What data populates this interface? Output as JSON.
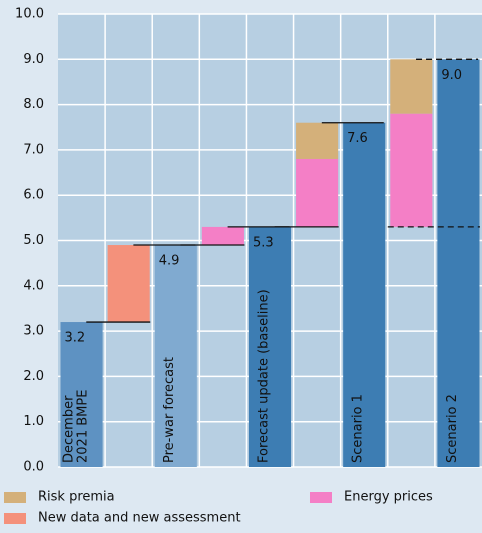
{
  "chart_data": {
    "type": "waterfall",
    "categories": [
      "December 2021 BMPE",
      null,
      "Pre-war forecast",
      null,
      "Forecast update (baseline)",
      null,
      "Scenario 1",
      null,
      "Scenario 2"
    ],
    "values": [
      3.2,
      null,
      4.9,
      null,
      5.3,
      null,
      7.6,
      null,
      9.0
    ],
    "value_labels": [
      "3.2",
      null,
      "4.9",
      null,
      "5.3",
      null,
      "7.6",
      null,
      "9.0"
    ],
    "colors": [
      "#5e92c2",
      null,
      "#80aad0",
      null,
      "#3d7db3",
      null,
      "#3d7db3",
      null,
      "#3d7db3"
    ],
    "series": [
      {
        "name": "Risk premia",
        "color": "#d4b07a",
        "values": [
          null,
          null,
          null,
          null,
          null,
          0.8,
          null,
          1.2,
          null
        ]
      },
      {
        "name": "New data and new assessment",
        "color": "#f4917b",
        "values": [
          null,
          1.7,
          null,
          null,
          null,
          null,
          null,
          null,
          null
        ]
      },
      {
        "name": "Energy prices",
        "color": "#f47fc6",
        "values": [
          null,
          null,
          null,
          0.4,
          null,
          1.5,
          null,
          2.5,
          null
        ]
      }
    ],
    "ylim": [
      0,
      10
    ],
    "yticks": [
      {
        "value": 0,
        "label": "0.0"
      },
      {
        "value": 1,
        "label": "1.0"
      },
      {
        "value": 2,
        "label": "2.0"
      },
      {
        "value": 3,
        "label": "3.0"
      },
      {
        "value": 4,
        "label": "4.0"
      },
      {
        "value": 5,
        "label": "5.0"
      },
      {
        "value": 6,
        "label": "6.0"
      },
      {
        "value": 7,
        "label": "7.0"
      },
      {
        "value": 8,
        "label": "8.0"
      },
      {
        "value": 9,
        "label": "9.0"
      },
      {
        "value": 10,
        "label": "10.0"
      }
    ],
    "grid": true
  }
}
